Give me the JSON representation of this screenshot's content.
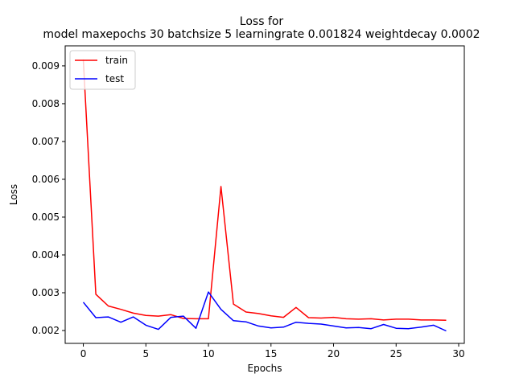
{
  "chart_data": {
    "type": "line",
    "title": "Loss for\nmodel maxepochs 30 batchsize 5 learningrate 0.001824 weightdecay 0.0002",
    "xlabel": "Epochs",
    "ylabel": "Loss",
    "xlim": [
      -1.45,
      30.45
    ],
    "ylim": [
      0.00166,
      0.00953
    ],
    "xticks": [
      0,
      5,
      10,
      15,
      20,
      25,
      30
    ],
    "xtick_labels": [
      "0",
      "5",
      "10",
      "15",
      "20",
      "25",
      "30"
    ],
    "yticks": [
      0.002,
      0.003,
      0.004,
      0.005,
      0.006,
      0.007,
      0.008,
      0.009
    ],
    "ytick_labels": [
      "0.002",
      "0.003",
      "0.004",
      "0.005",
      "0.006",
      "0.007",
      "0.008",
      "0.009"
    ],
    "grid": false,
    "legend": "upper-left",
    "x": [
      0,
      1,
      2,
      3,
      4,
      5,
      6,
      7,
      8,
      9,
      10,
      11,
      12,
      13,
      14,
      15,
      16,
      17,
      18,
      19,
      20,
      21,
      22,
      23,
      24,
      25,
      26,
      27,
      28,
      29
    ],
    "series": [
      {
        "name": "train",
        "color": "#ff0000",
        "values": [
          0.00917,
          0.00296,
          0.00265,
          0.00256,
          0.00246,
          0.0024,
          0.00238,
          0.00242,
          0.00232,
          0.00231,
          0.00231,
          0.00581,
          0.0027,
          0.00249,
          0.00245,
          0.00239,
          0.00235,
          0.00261,
          0.00234,
          0.00233,
          0.00235,
          0.00231,
          0.0023,
          0.00231,
          0.00228,
          0.0023,
          0.0023,
          0.00228,
          0.00228,
          0.00227
        ]
      },
      {
        "name": "test",
        "color": "#0000ff",
        "values": [
          0.00275,
          0.00234,
          0.00236,
          0.00222,
          0.00236,
          0.00214,
          0.00203,
          0.00235,
          0.00238,
          0.00206,
          0.00302,
          0.00256,
          0.00226,
          0.00223,
          0.00212,
          0.00207,
          0.00209,
          0.00222,
          0.00219,
          0.00217,
          0.00212,
          0.00207,
          0.00208,
          0.00205,
          0.00216,
          0.00206,
          0.00205,
          0.00209,
          0.00214,
          0.00199
        ]
      }
    ]
  }
}
